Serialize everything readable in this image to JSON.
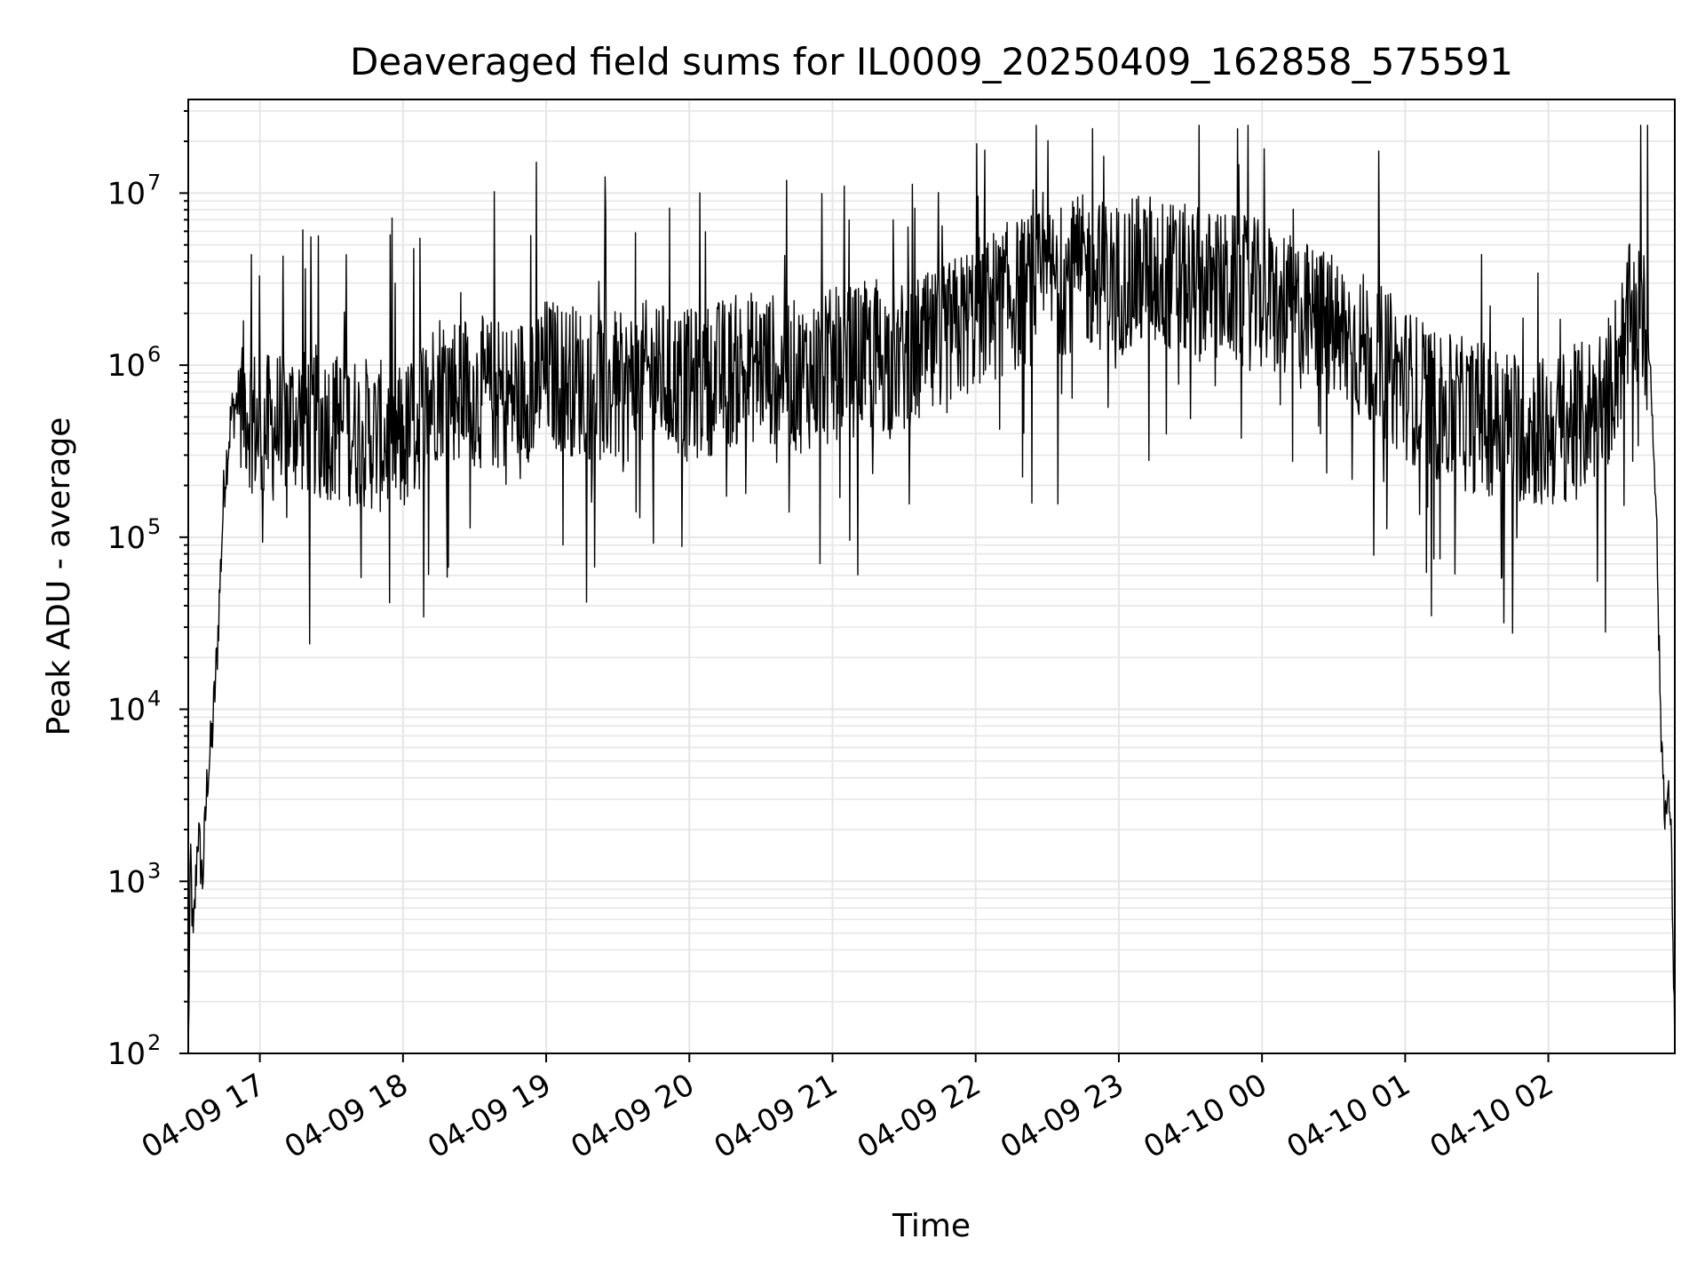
{
  "chart_data": {
    "type": "line",
    "title": "Deaveraged field sums for IL0009_20250409_162858_575591",
    "xlabel": "Time",
    "ylabel": "Peak ADU - average",
    "y_scale": "log",
    "ylim": [
      100,
      35000000
    ],
    "xlim": [
      "2025-04-09 16:30",
      "2025-04-10 02:53"
    ],
    "grid": true,
    "line_color": "#000000",
    "grid_color": "#e6e6e6",
    "x_ticks": [
      "04-09 17",
      "04-09 18",
      "04-09 19",
      "04-09 20",
      "04-09 21",
      "04-09 22",
      "04-09 23",
      "04-10 00",
      "04-10 01",
      "04-10 02"
    ],
    "y_ticks": [
      {
        "base": "10",
        "exp": "2"
      },
      {
        "base": "10",
        "exp": "3"
      },
      {
        "base": "10",
        "exp": "4"
      },
      {
        "base": "10",
        "exp": "5"
      },
      {
        "base": "10",
        "exp": "6"
      },
      {
        "base": "10",
        "exp": "7"
      }
    ],
    "series": [
      {
        "x": [
          "2025-04-09 16:30",
          "2025-04-09 16:31",
          "2025-04-09 16:32",
          "2025-04-09 16:34",
          "2025-04-09 16:36",
          "2025-04-09 16:38",
          "2025-04-09 16:40",
          "2025-04-09 16:42",
          "2025-04-09 16:45",
          "2025-04-09 16:48",
          "2025-04-09 16:52",
          "2025-04-09 17:00",
          "2025-04-09 17:15",
          "2025-04-09 17:30",
          "2025-04-09 17:45",
          "2025-04-09 18:00",
          "2025-04-09 18:15",
          "2025-04-09 18:30",
          "2025-04-09 18:45",
          "2025-04-09 19:00",
          "2025-04-09 19:15",
          "2025-04-09 19:30",
          "2025-04-09 19:45",
          "2025-04-09 20:00",
          "2025-04-09 20:15",
          "2025-04-09 20:30",
          "2025-04-09 20:45",
          "2025-04-09 21:00",
          "2025-04-09 21:15",
          "2025-04-09 21:30",
          "2025-04-09 21:45",
          "2025-04-09 22:00",
          "2025-04-09 22:15",
          "2025-04-09 22:30",
          "2025-04-09 22:45",
          "2025-04-09 23:00",
          "2025-04-09 23:15",
          "2025-04-09 23:30",
          "2025-04-09 23:45",
          "2025-04-10 00:00",
          "2025-04-10 00:15",
          "2025-04-10 00:30",
          "2025-04-10 00:45",
          "2025-04-10 01:00",
          "2025-04-10 01:15",
          "2025-04-10 01:30",
          "2025-04-10 01:45",
          "2025-04-10 02:00",
          "2025-04-10 02:15",
          "2025-04-10 02:25",
          "2025-04-10 02:35",
          "2025-04-10 02:42",
          "2025-04-10 02:45",
          "2025-04-10 02:47",
          "2025-04-10 02:49",
          "2025-04-10 02:51",
          "2025-04-10 02:52",
          "2025-04-10 02:53"
        ],
        "values": [
          100,
          1500,
          400,
          2000,
          1000,
          4000,
          7000,
          20000,
          200000,
          500000,
          700000,
          400000,
          500000,
          450000,
          400000,
          350000,
          800000,
          700000,
          650000,
          900000,
          800000,
          700000,
          900000,
          750000,
          900000,
          1000000,
          850000,
          1000000,
          1100000,
          1100000,
          1300000,
          2000000,
          2500000,
          3000000,
          3500000,
          3200000,
          3500000,
          3000000,
          2800000,
          2500000,
          2000000,
          1600000,
          1200000,
          800000,
          550000,
          500000,
          450000,
          400000,
          500000,
          700000,
          2000000,
          1500000,
          200000,
          9000,
          2500,
          3000,
          800,
          100
        ]
      }
    ]
  }
}
